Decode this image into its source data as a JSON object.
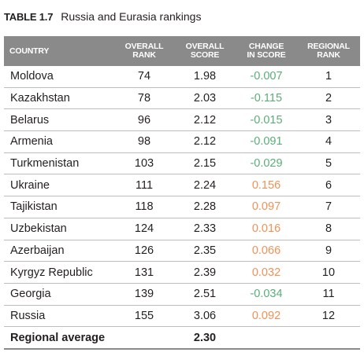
{
  "caption": {
    "number": "TABLE 1.7",
    "title": "Russia and Eurasia rankings"
  },
  "headers": {
    "country": [
      "COUNTRY"
    ],
    "overall_rank": [
      "OVERALL",
      "RANK"
    ],
    "overall_score": [
      "OVERALL",
      "SCORE"
    ],
    "change": [
      "CHANGE",
      "IN SCORE"
    ],
    "regional_rank": [
      "REGIONAL",
      "RANK"
    ]
  },
  "colors": {
    "header_bg": "#8a8a8a",
    "decrease": "#5aad78",
    "increase": "#f29156"
  },
  "rows": [
    {
      "country": "Moldova",
      "rank": "74",
      "score": "1.98",
      "change": "-0.007",
      "regional": "1"
    },
    {
      "country": "Kazakhstan",
      "rank": "78",
      "score": "2.03",
      "change": "-0.115",
      "regional": "2"
    },
    {
      "country": "Belarus",
      "rank": "96",
      "score": "2.12",
      "change": "-0.015",
      "regional": "3"
    },
    {
      "country": "Armenia",
      "rank": "98",
      "score": "2.12",
      "change": "-0.091",
      "regional": "4"
    },
    {
      "country": "Turkmenistan",
      "rank": "103",
      "score": "2.15",
      "change": "-0.029",
      "regional": "5"
    },
    {
      "country": "Ukraine",
      "rank": "111",
      "score": "2.24",
      "change": "0.156",
      "regional": "6"
    },
    {
      "country": "Tajikistan",
      "rank": "118",
      "score": "2.28",
      "change": "0.097",
      "regional": "7"
    },
    {
      "country": "Uzbekistan",
      "rank": "124",
      "score": "2.33",
      "change": "0.016",
      "regional": "8"
    },
    {
      "country": "Azerbaijan",
      "rank": "126",
      "score": "2.35",
      "change": "0.066",
      "regional": "9"
    },
    {
      "country": "Kyrgyz Republic",
      "rank": "131",
      "score": "2.39",
      "change": "0.032",
      "regional": "10"
    },
    {
      "country": "Georgia",
      "rank": "139",
      "score": "2.51",
      "change": "-0.034",
      "regional": "11"
    },
    {
      "country": "Russia",
      "rank": "155",
      "score": "3.06",
      "change": "0.092",
      "regional": "12"
    }
  ],
  "average": {
    "label": "Regional average",
    "score": "2.30"
  }
}
